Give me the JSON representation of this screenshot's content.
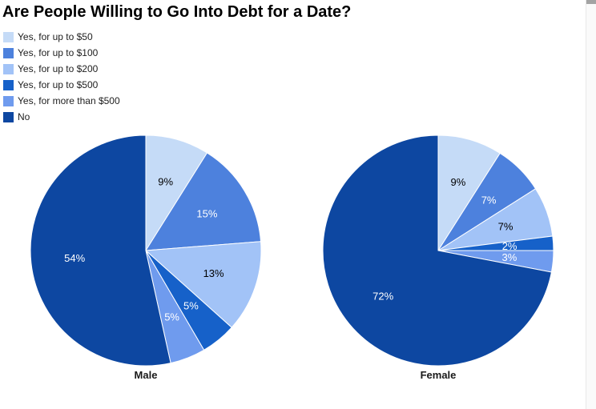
{
  "chart_data": {
    "type": "pie",
    "title": "Are People Willing to Go Into Debt for a Date?",
    "legend_position": "top-left",
    "direction": "clockwise",
    "start_angle": "12-oclock",
    "slice_label_format": "percent",
    "categories": [
      "Yes, for up to $50",
      "Yes, for up to $100",
      "Yes, for up to $200",
      "Yes, for up to $500",
      "Yes, for more than $500",
      "No"
    ],
    "colors": [
      "#c5dbf7",
      "#4d81dd",
      "#a2c3f7",
      "#1661c9",
      "#6f9bee",
      "#0d47a1"
    ],
    "slice_stroke_color": "#ffffff",
    "charts": [
      {
        "label": "Male",
        "values": [
          9,
          15,
          13,
          5,
          5,
          54
        ]
      },
      {
        "label": "Female",
        "values": [
          9,
          7,
          7,
          2,
          3,
          72
        ]
      }
    ]
  },
  "scrollbar": {
    "orientation": "vertical",
    "thumb_position": "top",
    "track_color": "#fafafa",
    "thumb_color": "#a3a3a3"
  }
}
